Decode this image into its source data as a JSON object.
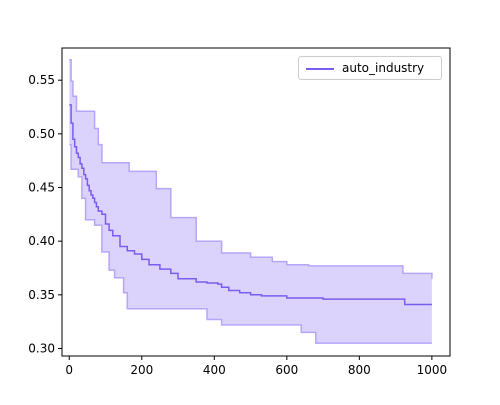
{
  "chart_data": {
    "type": "line",
    "title": "",
    "xlabel": "",
    "ylabel": "",
    "xlim": [
      -20,
      1050
    ],
    "ylim": [
      0.293,
      0.58
    ],
    "x_ticks": [
      0,
      200,
      400,
      600,
      800,
      1000
    ],
    "y_ticks": [
      0.3,
      0.35,
      0.4,
      0.45,
      0.5,
      0.55
    ],
    "x_tick_labels": [
      "0",
      "200",
      "400",
      "600",
      "800",
      "1000"
    ],
    "y_tick_labels": [
      "0.30",
      "0.35",
      "0.40",
      "0.45",
      "0.50",
      "0.55"
    ],
    "legend_position": "top-right",
    "colors": {
      "line": "#7b5cf0",
      "band_fill": "#dcd3fd",
      "band_edge": "#b7a5f8"
    },
    "series": [
      {
        "name": "auto_industry",
        "step": true,
        "x": [
          0,
          5,
          10,
          15,
          20,
          25,
          30,
          35,
          40,
          45,
          50,
          55,
          60,
          65,
          70,
          75,
          80,
          90,
          100,
          110,
          120,
          140,
          160,
          180,
          200,
          220,
          250,
          280,
          300,
          350,
          380,
          410,
          420,
          440,
          470,
          500,
          530,
          600,
          700,
          800,
          900,
          925,
          1000
        ],
        "y": [
          0.527,
          0.51,
          0.495,
          0.488,
          0.482,
          0.478,
          0.472,
          0.468,
          0.462,
          0.458,
          0.452,
          0.447,
          0.443,
          0.44,
          0.436,
          0.432,
          0.428,
          0.425,
          0.416,
          0.41,
          0.405,
          0.395,
          0.391,
          0.388,
          0.383,
          0.378,
          0.374,
          0.37,
          0.365,
          0.362,
          0.361,
          0.36,
          0.357,
          0.354,
          0.352,
          0.35,
          0.349,
          0.347,
          0.346,
          0.346,
          0.346,
          0.341,
          0.341
        ]
      }
    ],
    "band": {
      "upper": {
        "x": [
          0,
          5,
          10,
          20,
          30,
          70,
          80,
          90,
          165,
          175,
          240,
          280,
          350,
          420,
          500,
          560,
          600,
          660,
          900,
          920,
          1000
        ],
        "y": [
          0.569,
          0.549,
          0.535,
          0.521,
          0.521,
          0.505,
          0.49,
          0.473,
          0.465,
          0.465,
          0.449,
          0.422,
          0.4,
          0.389,
          0.385,
          0.381,
          0.378,
          0.377,
          0.377,
          0.37,
          0.365
        ]
      },
      "lower": {
        "x": [
          0,
          5,
          15,
          25,
          35,
          45,
          70,
          90,
          110,
          125,
          150,
          160,
          310,
          380,
          420,
          480,
          640,
          680,
          800,
          1000
        ],
        "y": [
          0.49,
          0.467,
          0.467,
          0.46,
          0.44,
          0.42,
          0.415,
          0.39,
          0.373,
          0.366,
          0.352,
          0.337,
          0.337,
          0.327,
          0.322,
          0.322,
          0.315,
          0.305,
          0.305,
          0.305
        ]
      }
    }
  }
}
